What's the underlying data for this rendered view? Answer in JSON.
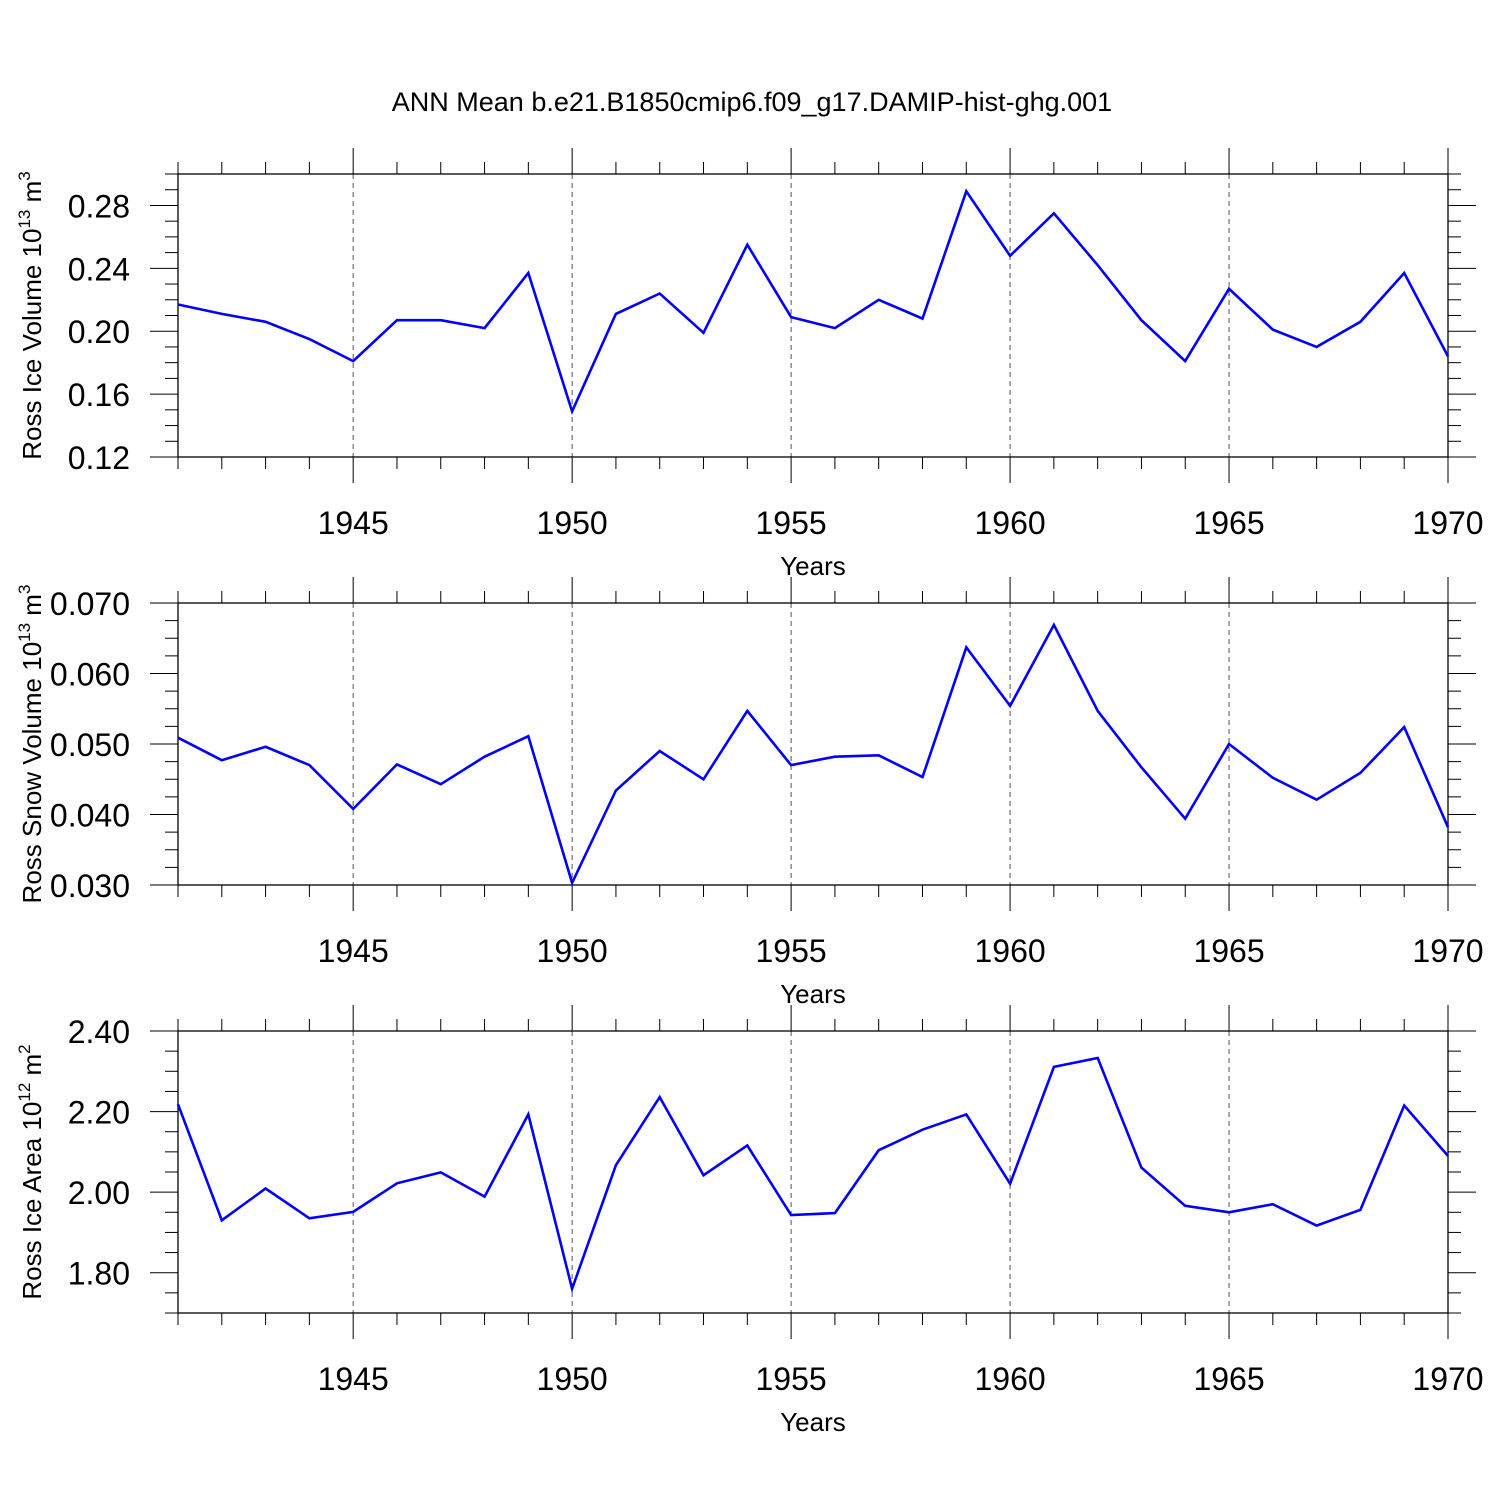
{
  "title": "ANN Mean b.e21.B1850cmip6.f09_g17.DAMIP-hist-ghg.001",
  "colors": {
    "line": "#0000ff",
    "axis": "#000000",
    "grid": "#555555"
  },
  "chart_data": [
    {
      "type": "line",
      "ylabel": {
        "main": "Ross Ice Volume 10",
        "exp": "13",
        "unit": " m",
        "unit_exp": "3"
      },
      "xlabel": "Years",
      "xlim": [
        1941,
        1970
      ],
      "ylim": [
        0.12,
        0.3
      ],
      "xticks": [
        1945,
        1950,
        1955,
        1960,
        1965,
        1970
      ],
      "yticks": [
        "0.12",
        "0.16",
        "0.20",
        "0.24",
        "0.28"
      ],
      "grid": "vertical dashed at major x ticks",
      "x": [
        1941,
        1942,
        1943,
        1944,
        1945,
        1946,
        1947,
        1948,
        1949,
        1950,
        1951,
        1952,
        1953,
        1954,
        1955,
        1956,
        1957,
        1958,
        1959,
        1960,
        1961,
        1962,
        1963,
        1964,
        1965,
        1966,
        1967,
        1968,
        1969,
        1970
      ],
      "series": [
        {
          "values": [
            0.217,
            0.211,
            0.206,
            0.195,
            0.181,
            0.207,
            0.207,
            0.202,
            0.237,
            0.149,
            0.211,
            0.224,
            0.199,
            0.255,
            0.209,
            0.202,
            0.22,
            0.208,
            0.289,
            0.248,
            0.275,
            0.242,
            0.207,
            0.181,
            0.227,
            0.201,
            0.19,
            0.206,
            0.237,
            0.184
          ]
        }
      ]
    },
    {
      "type": "line",
      "ylabel": {
        "main": "Ross Snow Volume 10",
        "exp": "13",
        "unit": " m",
        "unit_exp": "3"
      },
      "xlabel": "Years",
      "xlim": [
        1941,
        1970
      ],
      "ylim": [
        0.03,
        0.07
      ],
      "xticks": [
        1945,
        1950,
        1955,
        1960,
        1965,
        1970
      ],
      "yticks": [
        "0.030",
        "0.040",
        "0.050",
        "0.060",
        "0.070"
      ],
      "grid": "vertical dashed at major x ticks",
      "x": [
        1941,
        1942,
        1943,
        1944,
        1945,
        1946,
        1947,
        1948,
        1949,
        1950,
        1951,
        1952,
        1953,
        1954,
        1955,
        1956,
        1957,
        1958,
        1959,
        1960,
        1961,
        1962,
        1963,
        1964,
        1965,
        1966,
        1967,
        1968,
        1969,
        1970
      ],
      "series": [
        {
          "values": [
            0.0509,
            0.0477,
            0.0496,
            0.047,
            0.0408,
            0.0471,
            0.0443,
            0.0482,
            0.0511,
            0.0303,
            0.0434,
            0.049,
            0.045,
            0.0547,
            0.047,
            0.0482,
            0.0484,
            0.0453,
            0.0637,
            0.0554,
            0.0669,
            0.0547,
            0.0467,
            0.0394,
            0.05,
            0.0452,
            0.0421,
            0.0459,
            0.0524,
            0.0382
          ]
        }
      ]
    },
    {
      "type": "line",
      "ylabel": {
        "main": "Ross Ice Area 10",
        "exp": "12",
        "unit": " m",
        "unit_exp": "2"
      },
      "xlabel": "Years",
      "xlim": [
        1941,
        1970
      ],
      "ylim": [
        1.7,
        2.4
      ],
      "xticks": [
        1945,
        1950,
        1955,
        1960,
        1965,
        1970
      ],
      "yticks": [
        "1.80",
        "2.00",
        "2.20",
        "2.40"
      ],
      "grid": "vertical dashed at major x ticks",
      "x": [
        1941,
        1942,
        1943,
        1944,
        1945,
        1946,
        1947,
        1948,
        1949,
        1950,
        1951,
        1952,
        1953,
        1954,
        1955,
        1956,
        1957,
        1958,
        1959,
        1960,
        1961,
        1962,
        1963,
        1964,
        1965,
        1966,
        1967,
        1968,
        1969,
        1970
      ],
      "series": [
        {
          "values": [
            2.218,
            1.93,
            2.009,
            1.935,
            1.951,
            2.022,
            2.049,
            1.989,
            2.193,
            1.76,
            2.067,
            2.236,
            2.042,
            2.116,
            1.943,
            1.948,
            2.104,
            2.155,
            2.193,
            2.021,
            2.311,
            2.333,
            2.061,
            1.966,
            1.95,
            1.97,
            1.917,
            1.956,
            2.215,
            2.09
          ]
        }
      ]
    }
  ]
}
